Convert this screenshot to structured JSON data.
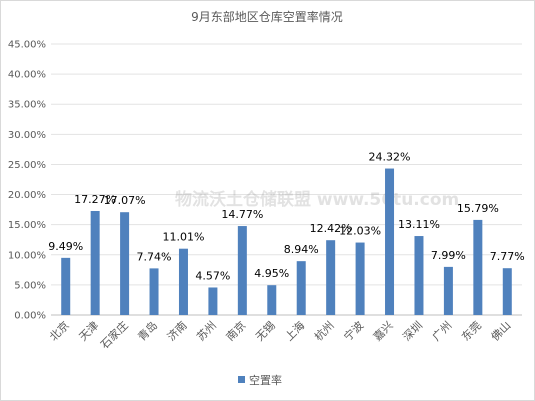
{
  "chart_data": {
    "type": "bar",
    "title": "9月东部地区仓库空置率情况",
    "categories": [
      "北京",
      "天津",
      "石家庄",
      "青岛",
      "济南",
      "苏州",
      "南京",
      "无锡",
      "上海",
      "杭州",
      "宁波",
      "嘉兴",
      "深圳",
      "广州",
      "东莞",
      "佛山"
    ],
    "series": [
      {
        "name": "空置率",
        "values": [
          9.49,
          17.27,
          17.07,
          7.74,
          11.01,
          4.57,
          14.77,
          4.95,
          8.94,
          12.42,
          12.03,
          24.32,
          13.11,
          7.99,
          15.79,
          7.77
        ]
      }
    ],
    "value_labels": [
      "9.49%",
      "17.27%",
      "17.07%",
      "7.74%",
      "11.01%",
      "4.57%",
      "14.77%",
      "4.95%",
      "8.94%",
      "12.42%",
      "12.03%",
      "24.32%",
      "13.11%",
      "7.99%",
      "15.79%",
      "7.77%"
    ],
    "ylim": [
      0,
      45
    ],
    "yticks": [
      "0.00%",
      "5.00%",
      "10.00%",
      "15.00%",
      "20.00%",
      "25.00%",
      "30.00%",
      "35.00%",
      "40.00%",
      "45.00%"
    ],
    "grid": true,
    "legend_position": "bottom",
    "bar_color": "#4f81bd",
    "watermark": "物流沃土仓储联盟 www.56tu.com"
  }
}
